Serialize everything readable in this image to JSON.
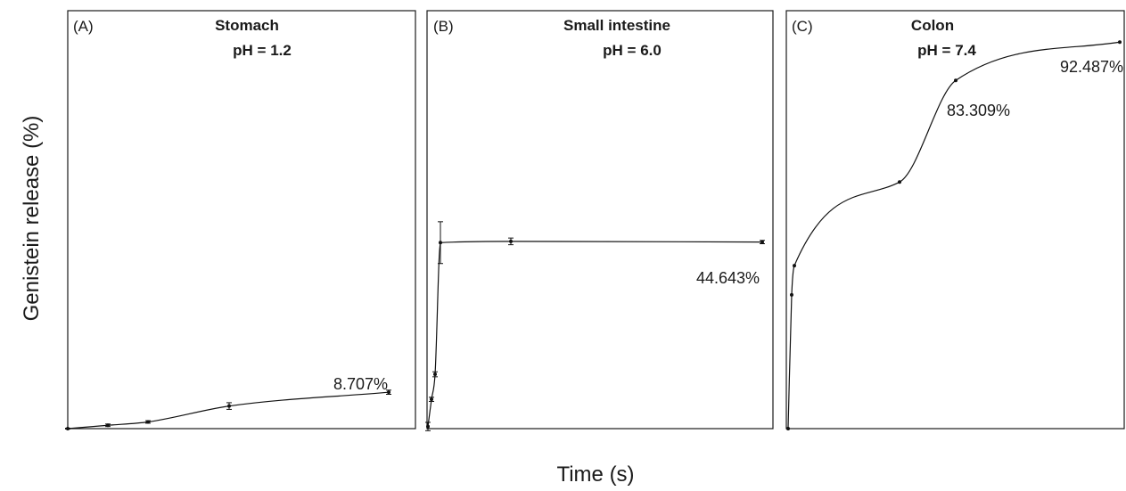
{
  "chart_data": {
    "type": "line",
    "xlabel": "Time (s)",
    "ylabel": "Genistein release (%)",
    "ylim": [
      0,
      100
    ],
    "grid": false,
    "panels": [
      {
        "tag": "(A)",
        "title_line1": "Stomach",
        "title_line2": "pH = 1.2",
        "xlim": [
          0,
          100
        ],
        "x": [
          0,
          12,
          24,
          48,
          96
        ],
        "y": [
          0.0,
          0.8,
          1.6,
          5.4,
          8.707
        ],
        "err": [
          0.1,
          0.3,
          0.3,
          0.8,
          0.5
        ],
        "end_label": "8.707%"
      },
      {
        "tag": "(B)",
        "title_line1": "Small intestine",
        "title_line2": "pH = 6.0",
        "xlim": [
          0,
          100
        ],
        "x": [
          0,
          1,
          2,
          4,
          25,
          100
        ],
        "y": [
          0.5,
          7,
          13,
          44.5,
          44.8,
          44.643
        ],
        "err": [
          1.0,
          0.5,
          0.6,
          5.0,
          0.8,
          0.4
        ],
        "end_label": "44.643%"
      },
      {
        "tag": "(C)",
        "title_line1": "Colon",
        "title_line2": "pH = 7.4",
        "xlim": [
          0,
          100
        ],
        "x": [
          0,
          1,
          2,
          33,
          50,
          100
        ],
        "y": [
          0,
          32,
          39,
          59,
          83.309,
          92.487
        ],
        "err": [
          0,
          0,
          0,
          0,
          0,
          0
        ],
        "end_label": "92.487%",
        "mid_label": "83.309%"
      }
    ]
  }
}
